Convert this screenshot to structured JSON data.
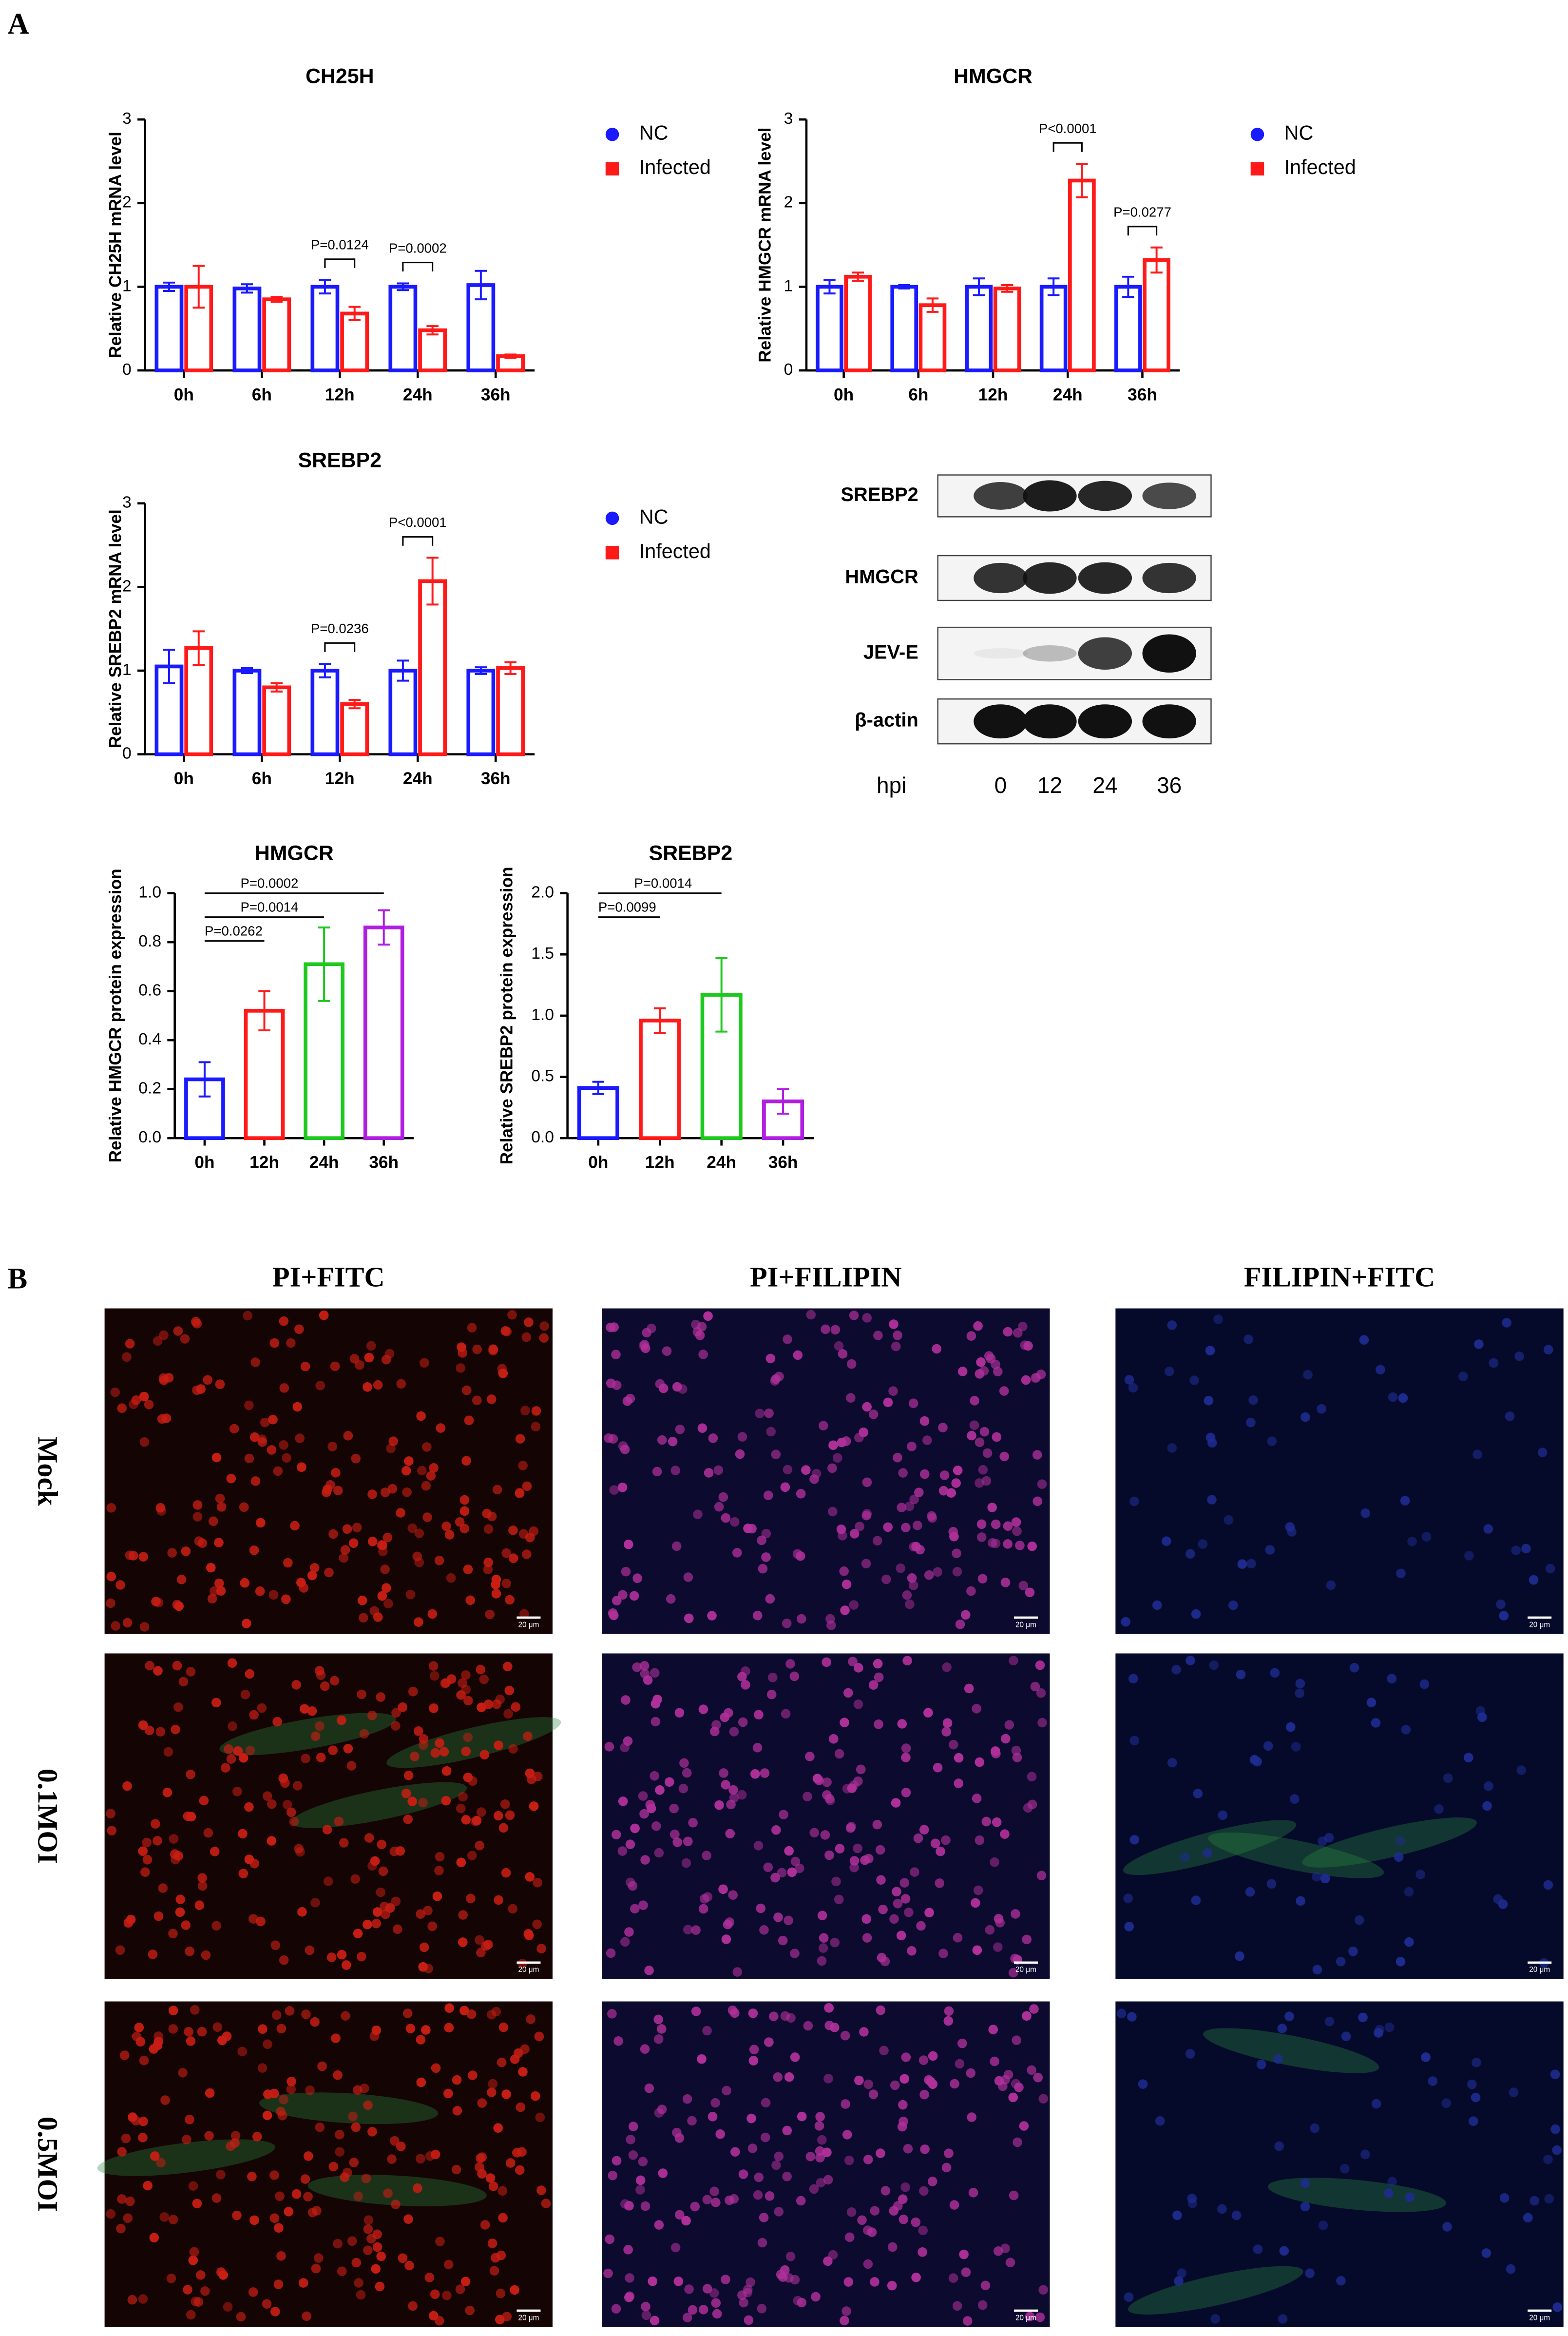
{
  "panel_labels": [
    "A",
    "B"
  ],
  "chart_data": [
    {
      "type": "bar",
      "title": "CH25H",
      "y_label": "Relative CH25H mRNA level",
      "categories": [
        "0h",
        "6h",
        "12h",
        "24h",
        "36h"
      ],
      "series": [
        {
          "name": "NC",
          "color": "#1a1aff",
          "values": [
            1.0,
            0.98,
            1.0,
            1.0,
            1.02
          ],
          "errors": [
            0.05,
            0.05,
            0.08,
            0.04,
            0.17
          ]
        },
        {
          "name": "Infected",
          "color": "#ff1a1a",
          "values": [
            1.0,
            0.85,
            0.68,
            0.48,
            0.17
          ],
          "errors": [
            0.25,
            0.03,
            0.08,
            0.05,
            0.02
          ]
        }
      ],
      "ylim": [
        0,
        3
      ],
      "yticks": [
        0,
        1,
        2,
        3
      ],
      "legend": "right",
      "annotations": [
        {
          "label": "P=0.0124",
          "category": "12h"
        },
        {
          "label": "P=0.0002",
          "category": "24h"
        }
      ]
    },
    {
      "type": "bar",
      "title": "HMGCR",
      "y_label": "Relative HMGCR mRNA level",
      "categories": [
        "0h",
        "6h",
        "12h",
        "24h",
        "36h"
      ],
      "series": [
        {
          "name": "NC",
          "color": "#1a1aff",
          "values": [
            1.0,
            1.0,
            1.0,
            1.0,
            1.0
          ],
          "errors": [
            0.08,
            0.02,
            0.1,
            0.1,
            0.12
          ]
        },
        {
          "name": "Infected",
          "color": "#ff1a1a",
          "values": [
            1.12,
            0.78,
            0.98,
            2.27,
            1.32
          ],
          "errors": [
            0.05,
            0.08,
            0.04,
            0.2,
            0.15
          ]
        }
      ],
      "ylim": [
        0,
        3
      ],
      "yticks": [
        0,
        1,
        2,
        3
      ],
      "legend": "right",
      "annotations": [
        {
          "label": "P<0.0001",
          "category": "24h"
        },
        {
          "label": "P=0.0277",
          "category": "36h"
        }
      ]
    },
    {
      "type": "bar",
      "title": "SREBP2",
      "y_label": "Relative SREBP2 mRNA level",
      "categories": [
        "0h",
        "6h",
        "12h",
        "24h",
        "36h"
      ],
      "series": [
        {
          "name": "NC",
          "color": "#1a1aff",
          "values": [
            1.05,
            1.0,
            1.0,
            1.0,
            1.0
          ],
          "errors": [
            0.2,
            0.03,
            0.08,
            0.12,
            0.04
          ]
        },
        {
          "name": "Infected",
          "color": "#ff1a1a",
          "values": [
            1.27,
            0.8,
            0.6,
            2.07,
            1.03
          ],
          "errors": [
            0.2,
            0.05,
            0.05,
            0.28,
            0.07
          ]
        }
      ],
      "ylim": [
        0,
        3
      ],
      "yticks": [
        0,
        1,
        2,
        3
      ],
      "legend": "right",
      "annotations": [
        {
          "label": "P=0.0236",
          "category": "12h"
        },
        {
          "label": "P<0.0001",
          "category": "24h"
        }
      ]
    },
    {
      "type": "bar",
      "title": "HMGCR",
      "y_label": "Relative HMGCR protein expression",
      "categories": [
        "0h",
        "12h",
        "24h",
        "36h"
      ],
      "values": [
        0.24,
        0.52,
        0.71,
        0.86
      ],
      "errors": [
        0.07,
        0.08,
        0.15,
        0.07
      ],
      "colors": [
        "#1a1aff",
        "#ff1a1a",
        "#1ec81e",
        "#b01ee0"
      ],
      "ylim": [
        0,
        1
      ],
      "yticks": [
        {
          "value": 0,
          "label": "0.0"
        },
        0.2,
        0.4,
        0.6,
        0.8,
        {
          "value": 1,
          "label": "1.0"
        }
      ],
      "annotations": [
        {
          "label": "P=0.0262",
          "from": "0h",
          "to": "12h"
        },
        {
          "label": "P=0.0014",
          "from": "0h",
          "to": "24h"
        },
        {
          "label": "P=0.0002",
          "from": "0h",
          "to": "36h"
        }
      ]
    },
    {
      "type": "bar",
      "title": "SREBP2",
      "y_label": "Relative SREBP2 protein expression",
      "categories": [
        "0h",
        "12h",
        "24h",
        "36h"
      ],
      "values": [
        0.41,
        0.96,
        1.17,
        0.3
      ],
      "errors": [
        0.05,
        0.1,
        0.3,
        0.1
      ],
      "colors": [
        "#1a1aff",
        "#ff1a1a",
        "#1ec81e",
        "#b01ee0"
      ],
      "ylim": [
        0,
        2
      ],
      "yticks": [
        {
          "value": 0,
          "label": "0.0"
        },
        0.5,
        {
          "value": 1,
          "label": "1.0"
        },
        1.5,
        {
          "value": 2,
          "label": "2.0"
        }
      ],
      "annotations": [
        {
          "label": "P=0.0099",
          "from": "0h",
          "to": "12h"
        },
        {
          "label": "P=0.0014",
          "from": "0h",
          "to": "24h"
        }
      ]
    }
  ],
  "blot": {
    "rows": [
      "SREBP2",
      "HMGCR",
      "JEV-E",
      "β-actin"
    ],
    "lane_title": "hpi",
    "lanes": [
      "0",
      "12",
      "24",
      "36"
    ]
  },
  "panel_b": {
    "columns": [
      "PI+FITC",
      "PI+FILIPIN",
      "FILIPIN+FITC"
    ],
    "rows": [
      "Mock",
      "0.1MOI",
      "0.5MOI"
    ],
    "scale_bar": "20 μm"
  }
}
